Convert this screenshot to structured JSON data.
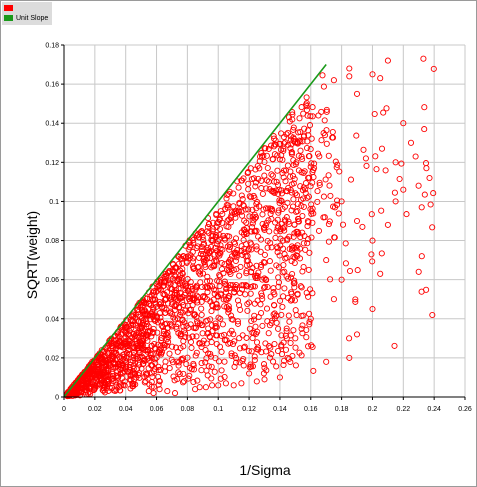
{
  "colors": {
    "series": "#ff0000",
    "unit_slope": "#1a9a1a",
    "grid": "#c8c8c8",
    "axis": "#000000",
    "legend_bg": "#dcdcdc"
  },
  "chart_data": {
    "type": "scatter",
    "title": "",
    "xlabel": "1/Sigma",
    "ylabel": "SQRT(weight)",
    "xlim": [
      0,
      0.26
    ],
    "ylim": [
      0,
      0.18
    ],
    "x_ticks": [
      "0",
      "0.02",
      "0.04",
      "0.06",
      "0.08",
      "0.1",
      "0.12",
      "0.14",
      "0.16",
      "0.18",
      "0.2",
      "0.22",
      "0.24",
      "0.26"
    ],
    "y_ticks": [
      "0",
      "0.02",
      "0.04",
      "0.06",
      "0.08",
      "0.1",
      "0.12",
      "0.14",
      "0.16",
      "0.18"
    ],
    "grid": true,
    "legend_position": "top-left",
    "series": [
      {
        "name": "",
        "marker": "open-circle",
        "color": "#ff0000",
        "points": [
          [
            0.055,
            0.003
          ],
          [
            0.058,
            0.002
          ],
          [
            0.062,
            0.004
          ],
          [
            0.067,
            0.003
          ],
          [
            0.072,
            0.002
          ],
          [
            0.085,
            0.004
          ],
          [
            0.088,
            0.005
          ],
          [
            0.092,
            0.005
          ],
          [
            0.096,
            0.006
          ],
          [
            0.1,
            0.006
          ],
          [
            0.105,
            0.007
          ],
          [
            0.11,
            0.006
          ],
          [
            0.115,
            0.007
          ],
          [
            0.125,
            0.008
          ],
          [
            0.13,
            0.009
          ],
          [
            0.14,
            0.01
          ],
          [
            0.17,
            0.018
          ],
          [
            0.185,
            0.02
          ],
          [
            0.19,
            0.032
          ],
          [
            0.2,
            0.045
          ],
          [
            0.205,
            0.063
          ],
          [
            0.21,
            0.088
          ],
          [
            0.215,
            0.1
          ],
          [
            0.22,
            0.106
          ],
          [
            0.23,
            0.064
          ],
          [
            0.232,
            0.072
          ],
          [
            0.235,
            0.117
          ],
          [
            0.237,
            0.112
          ],
          [
            0.228,
            0.123
          ],
          [
            0.225,
            0.13
          ],
          [
            0.21,
            0.172
          ],
          [
            0.233,
            0.173
          ],
          [
            0.2,
            0.165
          ],
          [
            0.185,
            0.164
          ],
          [
            0.175,
            0.162
          ],
          [
            0.19,
            0.155
          ],
          [
            0.205,
            0.163
          ],
          [
            0.215,
            0.12
          ],
          [
            0.22,
            0.14
          ],
          [
            0.18,
            0.1
          ],
          [
            0.19,
            0.09
          ],
          [
            0.2,
            0.08
          ],
          [
            0.17,
            0.07
          ],
          [
            0.175,
            0.05
          ],
          [
            0.18,
            0.06
          ],
          [
            0.16,
            0.04
          ],
          [
            0.15,
            0.03
          ],
          [
            0.145,
            0.02
          ],
          [
            0.13,
            0.015
          ],
          [
            0.12,
            0.012
          ]
        ]
      }
    ],
    "lines": [
      {
        "name": "Unit Slope",
        "color": "#1a9a1a",
        "x": [
          0,
          0.17
        ],
        "y": [
          0,
          0.17
        ]
      }
    ]
  },
  "legend": {
    "items": [
      {
        "label": "",
        "color": "#ff0000"
      },
      {
        "label": "Unit Slope",
        "color": "#1a9a1a"
      }
    ]
  }
}
